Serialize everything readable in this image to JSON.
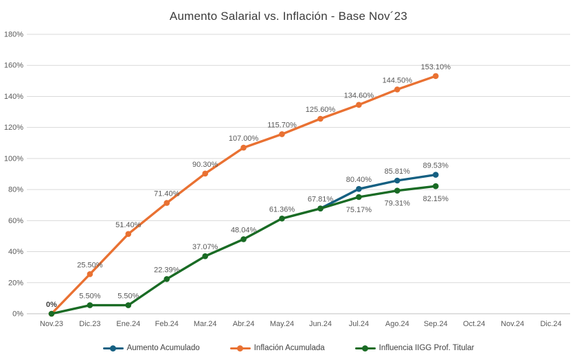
{
  "chart_data": {
    "type": "line",
    "title": "Aumento Salarial vs. Inflación - Base Nov´23",
    "categories": [
      "Nov.23",
      "Dic.23",
      "Ene.24",
      "Feb.24",
      "Mar.24",
      "Abr.24",
      "May.24",
      "Jun.24",
      "Jul.24",
      "Ago.24",
      "Sep.24",
      "Oct.24",
      "Nov.24",
      "Dic.24"
    ],
    "ylim": [
      0,
      180
    ],
    "ytick_step": 20,
    "ytick_labels": [
      "0%",
      "20%",
      "40%",
      "60%",
      "80%",
      "100%",
      "120%",
      "140%",
      "160%",
      "180%"
    ],
    "grid": true,
    "legend_position": "bottom",
    "background_color": "#FFFFFF",
    "gridline_color": "#D9D9D9",
    "axis_line_color": "#BFBFBF",
    "tick_text_color": "#595959",
    "data_label_color": "#595959",
    "title_color": "#3B3B3B",
    "series": [
      {
        "name": "Aumento Acumulado",
        "color": "#156082",
        "values": [
          null,
          null,
          null,
          null,
          null,
          null,
          null,
          67.81,
          80.4,
          85.81,
          89.53,
          null,
          null,
          null
        ],
        "labels": [
          null,
          null,
          null,
          null,
          null,
          null,
          null,
          null,
          "80.40%",
          "85.81%",
          "89.53%",
          null,
          null,
          null
        ],
        "label_side": [
          null,
          null,
          null,
          null,
          null,
          null,
          null,
          null,
          "above",
          "above",
          "above",
          null,
          null,
          null
        ]
      },
      {
        "name": "Inflación Acumulada",
        "color": "#E97132",
        "values": [
          0,
          25.5,
          51.4,
          71.4,
          90.3,
          107.0,
          115.7,
          125.6,
          134.6,
          144.5,
          153.1,
          null,
          null,
          null
        ],
        "labels": [
          null,
          "25.50%",
          "51.40%",
          "71.40%",
          "90.30%",
          "107.00%",
          "115.70%",
          "125.60%",
          "134.60%",
          "144.50%",
          "153.10%",
          null,
          null,
          null
        ],
        "label_side": [
          null,
          "above",
          "above",
          "above",
          "above",
          "above",
          "above",
          "above",
          "above",
          "above",
          "above",
          null,
          null,
          null
        ]
      },
      {
        "name": "Influencia IIGG Prof. Titular",
        "color": "#196B24",
        "values": [
          0,
          5.5,
          5.5,
          22.39,
          37.07,
          48.04,
          61.36,
          67.81,
          75.17,
          79.31,
          82.15,
          null,
          null,
          null
        ],
        "labels": [
          "0%",
          "5.50%",
          "5.50%",
          "22.39%",
          "37.07%",
          "48.04%",
          "61.36%",
          "67.81%",
          "75.17%",
          "79.31%",
          "82.15%",
          null,
          null,
          null
        ],
        "label_side": [
          "above",
          "above",
          "above",
          "above",
          "above",
          "above",
          "above",
          "above",
          "below",
          "below",
          "below",
          null,
          null,
          null
        ],
        "label_bold": [
          true,
          false,
          false,
          false,
          false,
          false,
          false,
          false,
          false,
          false,
          false,
          false,
          false,
          false
        ]
      }
    ]
  }
}
